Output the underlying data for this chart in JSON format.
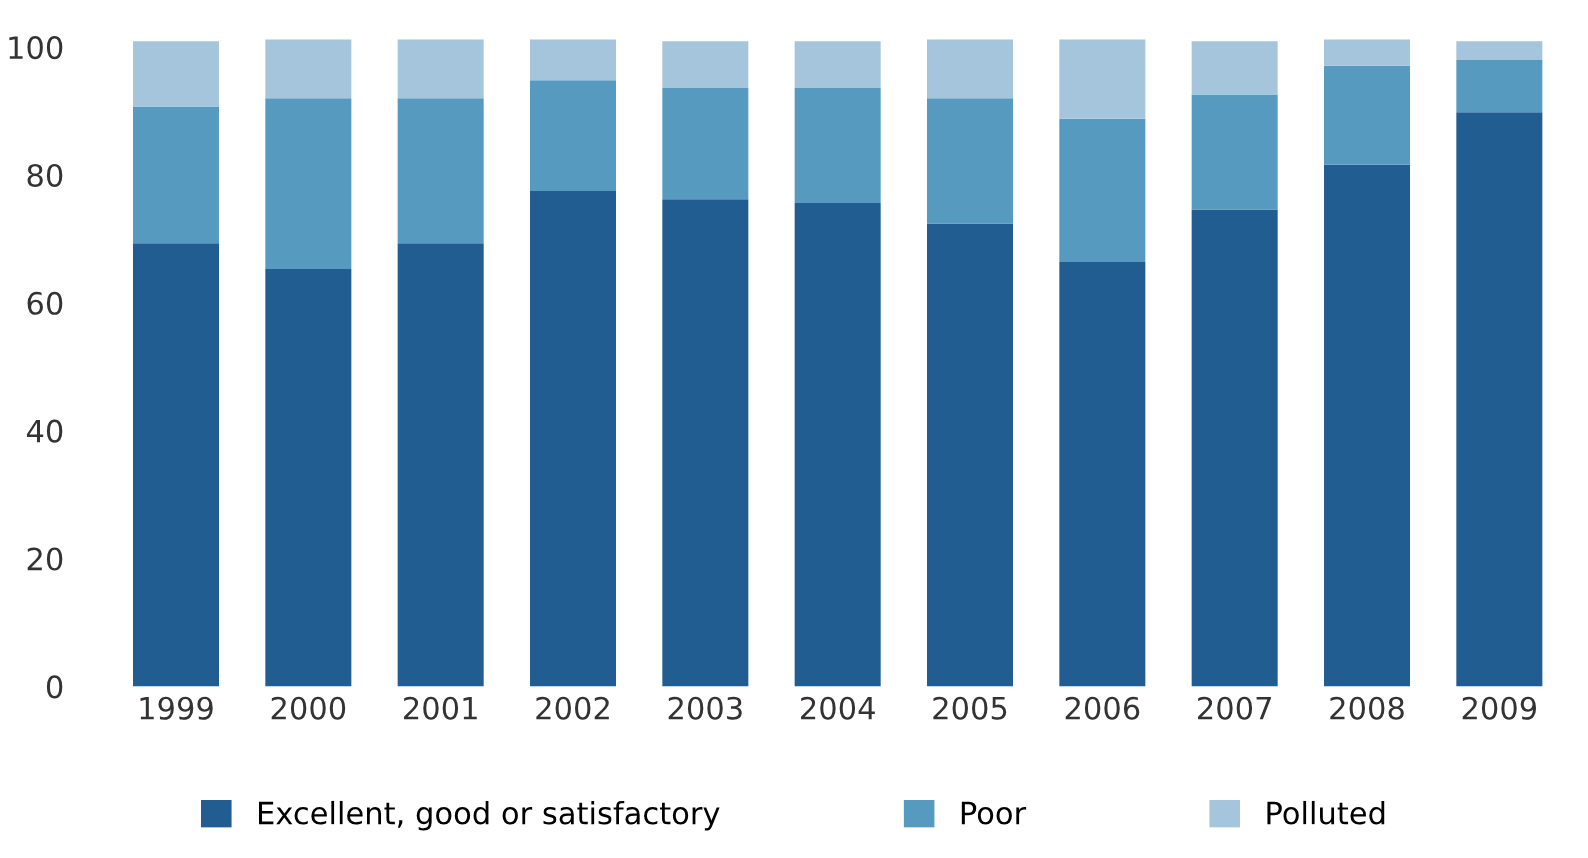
{
  "chart_data": {
    "type": "bar",
    "stacked": true,
    "categories": [
      "1999",
      "2000",
      "2001",
      "2002",
      "2003",
      "2004",
      "2005",
      "2006",
      "2007",
      "2008",
      "2009"
    ],
    "series": [
      {
        "name": "Excellent, good or satisfactory",
        "color": "#215d91",
        "values": [
          69.3,
          65.3,
          69.3,
          77.5,
          76.2,
          75.6,
          72.4,
          66.4,
          74.6,
          81.6,
          89.8
        ]
      },
      {
        "name": "Poor",
        "color": "#569bbf",
        "values": [
          21.4,
          26.7,
          22.7,
          17.3,
          17.4,
          18.0,
          19.6,
          22.4,
          18.0,
          15.5,
          8.2
        ]
      },
      {
        "name": "Polluted",
        "color": "#a4c5dc",
        "values": [
          10.2,
          9.2,
          9.2,
          6.4,
          7.3,
          7.3,
          9.2,
          12.4,
          8.3,
          4.1,
          2.9
        ]
      }
    ],
    "ylim": [
      0,
      102
    ],
    "yticks": [
      0,
      20,
      40,
      60,
      80,
      100
    ],
    "grid": false,
    "legend": "bottom"
  }
}
